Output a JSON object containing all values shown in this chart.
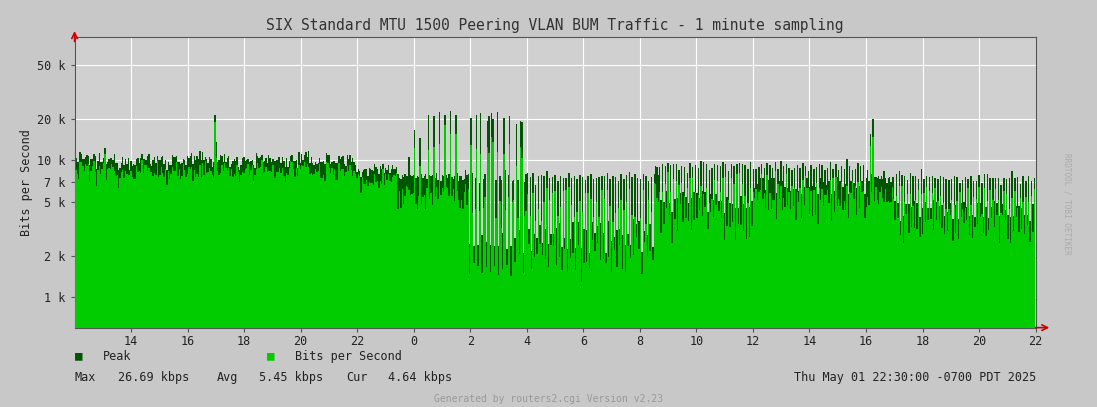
{
  "title": "SIX Standard MTU 1500 Peering VLAN BUM Traffic - 1 minute sampling",
  "ylabel": "Bits per Second",
  "background_color": "#c8c8c8",
  "plot_bg_color": "#d0d0d0",
  "grid_color": "#ffffff",
  "title_color": "#333333",
  "text_color": "#222222",
  "yticks_vals": [
    1000,
    2000,
    5000,
    7000,
    10000,
    20000,
    50000
  ],
  "yticks_labels": [
    "1 k",
    "2 k",
    "5 k",
    "7 k",
    "10 k",
    "20 k",
    "50 k"
  ],
  "ymin": 600,
  "ymax": 80000,
  "peak_color": "#005500",
  "bps_color": "#00cc00",
  "max_val": "26.69 kbps",
  "avg_val": "5.45 kbps",
  "cur_val": "4.64 kbps",
  "timestamp": "Thu May 01 22:30:00 -0700 PDT 2025",
  "generated_by": "Generated by routers2.cgi Version v2.23",
  "watermark": "RRDTOOL / TOBI OETIKER",
  "xtick_labels": [
    "14",
    "16",
    "18",
    "20",
    "22",
    "0",
    "2",
    "4",
    "6",
    "8",
    "10",
    "12",
    "14",
    "16",
    "18",
    "20",
    "22"
  ],
  "right_panel_color": "#d8d8d8"
}
